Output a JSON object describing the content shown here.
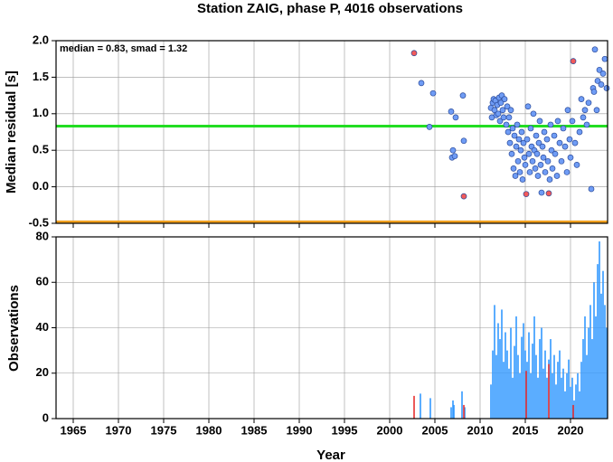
{
  "chart_data": [
    {
      "type": "scatter",
      "title": "Station ZAIG, phase P, 4016 observations",
      "ylabel": "Median residual [s]",
      "annotation": "median = 0.83, smad = 1.32",
      "xlim": [
        1963.1,
        2024.1
      ],
      "ylim": [
        -0.5,
        2.0
      ],
      "yticks": [
        {
          "value": -0.5,
          "label": "-0.5"
        },
        {
          "value": 0,
          "label": "0.0"
        },
        {
          "value": 0.5,
          "label": "0.5"
        },
        {
          "value": 1,
          "label": "1.0"
        },
        {
          "value": 1.5,
          "label": "1.5"
        },
        {
          "value": 2,
          "label": "2.0"
        }
      ],
      "grid": true,
      "hlines": [
        {
          "value": 0.83,
          "color": "#22dd22"
        },
        {
          "value": -0.48,
          "color": "#f0a020"
        }
      ],
      "series": [
        {
          "color": "#6f9cf5",
          "x": [
            2003.5,
            2004.4,
            2004.8,
            2006.8,
            2007.0,
            2006.9,
            2007.2,
            2007.3,
            2008.1,
            2008.2,
            2011.2,
            2011.3,
            2011.4,
            2011.5,
            2011.6,
            2011.7,
            2011.8,
            2011.9,
            2012.0,
            2012.1,
            2012.2,
            2012.3,
            2012.4,
            2012.5,
            2012.6,
            2012.7,
            2012.9,
            2013.0,
            2013.1,
            2013.2,
            2013.3,
            2013.4,
            2013.5,
            2013.6,
            2013.7,
            2013.8,
            2013.9,
            2014.0,
            2014.1,
            2014.2,
            2014.3,
            2014.4,
            2014.5,
            2014.6,
            2014.7,
            2014.8,
            2014.9,
            2015.0,
            2015.2,
            2015.3,
            2015.4,
            2015.5,
            2015.6,
            2015.7,
            2015.8,
            2015.9,
            2016.0,
            2016.1,
            2016.2,
            2016.3,
            2016.4,
            2016.5,
            2016.6,
            2016.7,
            2016.8,
            2016.9,
            2017.0,
            2017.1,
            2017.2,
            2017.4,
            2017.5,
            2017.7,
            2017.8,
            2017.9,
            2018.0,
            2018.2,
            2018.3,
            2018.5,
            2018.6,
            2018.8,
            2019.0,
            2019.2,
            2019.4,
            2019.6,
            2019.7,
            2019.9,
            2020.0,
            2020.2,
            2020.5,
            2020.7,
            2021.0,
            2021.2,
            2021.4,
            2021.6,
            2021.8,
            2022.0,
            2022.3,
            2022.5,
            2022.6,
            2022.7,
            2022.9,
            2023.0,
            2023.2,
            2023.4,
            2023.6,
            2023.8,
            2024.0
          ],
          "values": [
            1.42,
            0.82,
            1.28,
            1.03,
            0.5,
            0.4,
            0.42,
            0.95,
            1.25,
            0.63,
            1.08,
            0.95,
            1.15,
            1.2,
            1.05,
            1.18,
            0.98,
            1.12,
            1.0,
            1.22,
            0.9,
            1.15,
            1.25,
            1.05,
            0.95,
            1.2,
            0.85,
            1.1,
            0.75,
            0.95,
            0.6,
            1.05,
            0.45,
            0.8,
            0.25,
            0.7,
            0.15,
            0.55,
            0.85,
            0.35,
            0.65,
            0.2,
            0.5,
            0.75,
            0.1,
            0.6,
            0.4,
            0.3,
            0.65,
            1.1,
            0.45,
            0.2,
            0.8,
            0.55,
            0.35,
            1.0,
            0.5,
            0.25,
            0.7,
            0.45,
            0.15,
            0.6,
            0.9,
            0.3,
            -0.08,
            0.55,
            0.4,
            0.75,
            0.2,
            0.65,
            0.35,
            0.1,
            0.85,
            0.5,
            0.25,
            0.7,
            0.45,
            0.15,
            0.9,
            0.6,
            0.35,
            0.8,
            0.55,
            0.2,
            1.05,
            0.65,
            0.4,
            0.9,
            0.6,
            0.3,
            0.75,
            1.2,
            0.95,
            1.05,
            0.85,
            1.15,
            -0.03,
            1.35,
            1.3,
            1.88,
            1.05,
            1.45,
            1.6,
            1.4,
            1.55,
            1.75,
            1.35
          ]
        },
        {
          "color": "#f25a5a",
          "x": [
            2002.7,
            2008.2,
            2015.1,
            2017.6,
            2020.3
          ],
          "values": [
            1.83,
            -0.13,
            -0.1,
            -0.09,
            1.72
          ]
        }
      ]
    },
    {
      "type": "bar",
      "ylabel": "Observations",
      "xlabel": "Year",
      "xlim": [
        1963.1,
        2024.1
      ],
      "ylim": [
        0,
        80
      ],
      "xticks": [
        1965,
        1970,
        1975,
        1980,
        1985,
        1990,
        1995,
        2000,
        2005,
        2010,
        2015,
        2020
      ],
      "yticks": [
        0,
        20,
        40,
        60,
        80
      ],
      "grid": true,
      "series": [
        {
          "color": "#3399ff",
          "x": [
            2003.4,
            2004.5,
            2006.8,
            2007.0,
            2007.1,
            2008.0,
            2008.3,
            2011.2,
            2011.4,
            2011.6,
            2011.8,
            2012.0,
            2012.2,
            2012.4,
            2012.6,
            2012.8,
            2013.0,
            2013.2,
            2013.4,
            2013.6,
            2013.8,
            2014.0,
            2014.2,
            2014.4,
            2014.6,
            2014.8,
            2015.0,
            2015.2,
            2015.4,
            2015.6,
            2015.8,
            2016.0,
            2016.2,
            2016.4,
            2016.6,
            2016.8,
            2017.0,
            2017.2,
            2017.4,
            2017.6,
            2017.8,
            2018.0,
            2018.2,
            2018.4,
            2018.6,
            2018.8,
            2019.0,
            2019.2,
            2019.4,
            2019.6,
            2019.8,
            2020.0,
            2020.2,
            2020.4,
            2020.6,
            2020.8,
            2021.0,
            2021.2,
            2021.4,
            2021.6,
            2021.8,
            2022.0,
            2022.2,
            2022.4,
            2022.6,
            2022.8,
            2023.0,
            2023.2,
            2023.4,
            2023.6,
            2023.8,
            2024.0
          ],
          "values": [
            11,
            9,
            5,
            8,
            6,
            12,
            5,
            15,
            30,
            50,
            28,
            42,
            35,
            48,
            25,
            38,
            30,
            22,
            40,
            18,
            32,
            45,
            28,
            20,
            36,
            42,
            30,
            25,
            38,
            20,
            33,
            45,
            28,
            18,
            35,
            40,
            22,
            30,
            18,
            26,
            35,
            20,
            28,
            15,
            25,
            30,
            18,
            22,
            12,
            20,
            26,
            14,
            18,
            8,
            15,
            20,
            12,
            25,
            35,
            45,
            28,
            40,
            50,
            35,
            60,
            45,
            68,
            78,
            55,
            65,
            50,
            40
          ]
        },
        {
          "color": "#e83030",
          "x": [
            2002.7,
            2008.2,
            2015.1,
            2017.6,
            2020.3
          ],
          "values": [
            10,
            6,
            21,
            24,
            6
          ]
        }
      ]
    }
  ]
}
